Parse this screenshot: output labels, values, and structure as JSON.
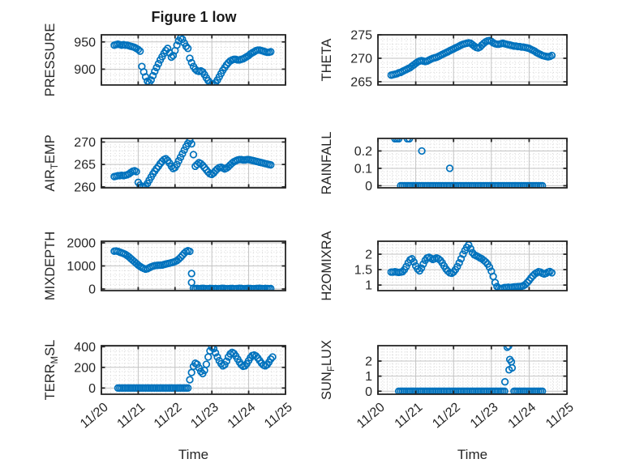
{
  "figure": {
    "title": "Figure 1 low"
  },
  "style": {
    "marker_color": "#0072BD",
    "axis_color": "#262626",
    "major_grid_color": "#c3c3c3",
    "minor_grid_color": "#d6d6d6"
  },
  "x_axis": {
    "label": "Time",
    "lim": [
      0,
      5
    ],
    "tick_values": [
      0,
      1,
      2,
      3,
      4,
      5
    ],
    "tick_labels": [
      "11/20",
      "11/21",
      "11/22",
      "11/23",
      "11/24",
      "11/25"
    ],
    "minor_step": 0.125
  },
  "chart_data": [
    {
      "type": "scatter",
      "name": "pressure",
      "ylabel_segments": [
        {
          "text": "PRESSURE",
          "sub": false
        }
      ],
      "ylim": [
        871,
        963
      ],
      "ytick_values": [
        900,
        950
      ],
      "ytick_labels": [
        "900",
        "950"
      ],
      "y_minor_step": 10,
      "series": {
        "t0": 0.35,
        "dt": 0.05,
        "y": [
          944,
          945,
          946,
          945,
          944,
          945,
          944,
          944,
          943,
          942,
          941,
          940,
          938,
          936,
          933,
          905,
          895,
          886,
          878,
          875,
          880,
          888,
          896,
          903,
          910,
          917,
          923,
          929,
          934,
          938,
          930,
          922,
          925,
          934,
          944,
          952,
          957,
          955,
          948,
          942,
          938,
          920,
          912,
          905,
          900,
          897,
          896,
          897,
          895,
          890,
          884,
          879,
          875,
          873,
          872,
          875,
          880,
          886,
          892,
          898,
          903,
          908,
          912,
          915,
          917,
          918,
          918,
          917,
          917,
          918,
          919,
          921,
          923,
          925,
          928,
          930,
          932,
          934,
          935,
          935,
          934,
          933,
          932,
          931,
          931,
          932
        ]
      }
    },
    {
      "type": "scatter",
      "name": "theta",
      "ylabel_segments": [
        {
          "text": "THETA",
          "sub": false
        }
      ],
      "ylim": [
        264.3,
        275
      ],
      "ytick_values": [
        265,
        270,
        275
      ],
      "ytick_labels": [
        "265",
        "270",
        "275"
      ],
      "y_minor_step": 1,
      "series": {
        "t0": 0.35,
        "dt": 0.05,
        "y": [
          266.4,
          266.5,
          266.6,
          266.7,
          266.9,
          267.0,
          267.2,
          267.4,
          267.6,
          267.8,
          268.0,
          268.3,
          268.6,
          268.9,
          269.2,
          269.4,
          269.5,
          269.4,
          269.3,
          269.4,
          269.6,
          269.8,
          270.0,
          270.1,
          270.2,
          270.4,
          270.6,
          270.8,
          271.0,
          271.2,
          271.4,
          271.6,
          271.8,
          272.0,
          272.2,
          272.4,
          272.6,
          272.8,
          273.0,
          273.1,
          273.2,
          273.3,
          273.2,
          272.9,
          272.6,
          272.3,
          272.2,
          272.4,
          272.8,
          273.2,
          273.5,
          273.7,
          273.8,
          273.6,
          273.3,
          273.1,
          273.0,
          273.0,
          273.1,
          273.2,
          273.1,
          273.0,
          272.9,
          272.8,
          272.7,
          272.6,
          272.6,
          272.5,
          272.5,
          272.4,
          272.4,
          272.3,
          272.2,
          272.1,
          271.9,
          271.7,
          271.5,
          271.2,
          271.0,
          270.8,
          270.6,
          270.5,
          270.4,
          270.3,
          270.4,
          270.6
        ]
      }
    },
    {
      "type": "scatter",
      "name": "air-temp",
      "ylabel_segments": [
        {
          "text": "AIR",
          "sub": false
        },
        {
          "text": "T",
          "sub": true
        },
        {
          "text": "EMP",
          "sub": false
        }
      ],
      "ylim": [
        259.8,
        270.8
      ],
      "ytick_values": [
        260,
        265,
        270
      ],
      "ytick_labels": [
        "260",
        "265",
        "270"
      ],
      "y_minor_step": 1,
      "series": {
        "t0": 0.35,
        "dt": 0.05,
        "y": [
          262.3,
          262.4,
          262.5,
          262.5,
          262.6,
          262.5,
          262.6,
          262.7,
          262.9,
          263.2,
          263.5,
          263.6,
          263.4,
          261.0,
          260.4,
          260.1,
          260.0,
          260.2,
          260.8,
          261.5,
          262.2,
          262.9,
          263.5,
          264.1,
          264.6,
          265.2,
          265.7,
          266.1,
          266.3,
          265.9,
          265.3,
          264.6,
          264.1,
          264.3,
          265.0,
          265.8,
          266.6,
          267.4,
          268.2,
          269.0,
          269.7,
          270.3,
          269.6,
          267.2,
          264.6,
          265.0,
          265.4,
          265.2,
          264.8,
          264.3,
          263.8,
          263.3,
          262.9,
          262.8,
          263.1,
          263.6,
          264.0,
          264.3,
          264.4,
          264.2,
          264.0,
          264.2,
          264.5,
          264.9,
          265.3,
          265.6,
          265.8,
          266.0,
          266.1,
          266.1,
          266.0,
          266.0,
          266.1,
          266.1,
          266.0,
          265.9,
          265.8,
          265.7,
          265.6,
          265.5,
          265.4,
          265.3,
          265.2,
          265.1,
          265.0,
          264.9
        ]
      }
    },
    {
      "type": "scatter",
      "name": "rainfall",
      "ylabel_segments": [
        {
          "text": "RAINFALL",
          "sub": false
        }
      ],
      "ylim": [
        -0.012,
        0.272
      ],
      "ytick_values": [
        0,
        0.1,
        0.2
      ],
      "ytick_labels": [
        "0",
        "0.1",
        "0.2"
      ],
      "y_minor_step": 0.02,
      "series": {
        "t0": 0.6,
        "dt": 0.05,
        "y": [
          0,
          0,
          0,
          0,
          0,
          0,
          0,
          0,
          0,
          0,
          0,
          0,
          0,
          0,
          0,
          0,
          0,
          0,
          0,
          0,
          0,
          0,
          0,
          0,
          0,
          0,
          0,
          0,
          0,
          0,
          0,
          0,
          0,
          0,
          0,
          0,
          0,
          0,
          0,
          0,
          0,
          0,
          0,
          0,
          0,
          0,
          0,
          0,
          0,
          0,
          0,
          0,
          0,
          0,
          0,
          0,
          0,
          0,
          0,
          0,
          0,
          0,
          0,
          0,
          0,
          0,
          0,
          0,
          0,
          0,
          0,
          0,
          0,
          0,
          0,
          0
        ]
      },
      "extra_points": [
        [
          0.45,
          0.27
        ],
        [
          0.5,
          0.27
        ],
        [
          0.55,
          0.27
        ],
        [
          0.78,
          0.27
        ],
        [
          0.83,
          0.27
        ],
        [
          1.16,
          0.2
        ],
        [
          1.9,
          0.1
        ]
      ]
    },
    {
      "type": "scatter",
      "name": "mixdepth",
      "ylabel_segments": [
        {
          "text": "MIXDEPTH",
          "sub": false
        }
      ],
      "ylim": [
        -70,
        2070
      ],
      "ytick_values": [
        0,
        1000,
        2000
      ],
      "ytick_labels": [
        "0",
        "1000",
        "2000"
      ],
      "y_minor_step": 200,
      "series": {
        "t0": 0.35,
        "dt": 0.05,
        "y": [
          1640,
          1650,
          1630,
          1600,
          1570,
          1540,
          1500,
          1450,
          1390,
          1320,
          1250,
          1180,
          1110,
          1040,
          980,
          930,
          890,
          860,
          880,
          920,
          960,
          990,
          1010,
          1020,
          1030,
          1030,
          1040,
          1060,
          1080,
          1100,
          1120,
          1140,
          1160,
          1190,
          1230,
          1290,
          1370,
          1460,
          1550,
          1620,
          1660,
          1630,
          null,
          30,
          15,
          25,
          10,
          20,
          30,
          20,
          10,
          15,
          25,
          20,
          10,
          20,
          15,
          10,
          25,
          30,
          20,
          10,
          15,
          20,
          25,
          15,
          10,
          20,
          30,
          25,
          15,
          10,
          20,
          25,
          20,
          15,
          10,
          20,
          25,
          30,
          20,
          15,
          25,
          20,
          15,
          20
        ]
      },
      "extra_points": [
        [
          2.45,
          670
        ],
        [
          2.45,
          280
        ]
      ]
    },
    {
      "type": "scatter",
      "name": "h2omixra",
      "ylabel_segments": [
        {
          "text": "H2OMIXRA",
          "sub": false
        }
      ],
      "ylim": [
        0.82,
        2.42
      ],
      "ytick_values": [
        1,
        1.5,
        2
      ],
      "ytick_labels": [
        "1",
        "1.5",
        "2"
      ],
      "y_minor_step": 0.1,
      "series": {
        "t0": 0.35,
        "dt": 0.05,
        "y": [
          1.42,
          1.42,
          1.43,
          1.42,
          1.41,
          1.42,
          1.43,
          1.5,
          1.6,
          1.72,
          1.82,
          1.85,
          1.75,
          1.62,
          1.52,
          1.46,
          1.55,
          1.68,
          1.8,
          1.88,
          1.9,
          1.87,
          1.83,
          1.85,
          1.88,
          1.85,
          1.8,
          1.72,
          1.62,
          1.52,
          1.45,
          1.4,
          1.38,
          1.42,
          1.5,
          1.6,
          1.72,
          1.85,
          2.0,
          2.12,
          2.22,
          2.3,
          2.18,
          2.05,
          1.98,
          1.95,
          1.92,
          1.88,
          1.85,
          1.8,
          1.75,
          1.68,
          1.58,
          1.45,
          1.28,
          1.08,
          0.95,
          0.9,
          0.88,
          0.9,
          0.92,
          0.92,
          0.93,
          0.92,
          0.93,
          0.94,
          0.94,
          0.95,
          0.95,
          0.96,
          0.98,
          1.02,
          1.08,
          1.15,
          1.23,
          1.3,
          1.36,
          1.4,
          1.43,
          1.42,
          1.38,
          1.36,
          1.38,
          1.42,
          1.44,
          1.4
        ]
      }
    },
    {
      "type": "scatter",
      "name": "terr-msl",
      "ylabel_segments": [
        {
          "text": "TERR",
          "sub": false
        },
        {
          "text": "M",
          "sub": true
        },
        {
          "text": "SL",
          "sub": false
        }
      ],
      "ylim": [
        -60,
        410
      ],
      "ytick_values": [
        0,
        200,
        400
      ],
      "ytick_labels": [
        "0",
        "200",
        "400"
      ],
      "y_minor_step": 40,
      "series": {
        "t0": 0.45,
        "dt": 0.05,
        "y": [
          0,
          0,
          0,
          0,
          0,
          0,
          0,
          0,
          0,
          0,
          0,
          0,
          0,
          0,
          0,
          0,
          0,
          0,
          0,
          0,
          0,
          0,
          0,
          0,
          0,
          0,
          0,
          0,
          0,
          0,
          0,
          0,
          0,
          0,
          0,
          0,
          0,
          0,
          0,
          80,
          150,
          210,
          240,
          230,
          195,
          160,
          140,
          170,
          230,
          300,
          360,
          395,
          380,
          340,
          300,
          265,
          235,
          215,
          225,
          260,
          300,
          330,
          345,
          335,
          310,
          280,
          250,
          225,
          210,
          215,
          235,
          265,
          295,
          315,
          320,
          310,
          290,
          265,
          240,
          222,
          215,
          225,
          250,
          280,
          300
        ]
      }
    },
    {
      "type": "scatter",
      "name": "sun-flux",
      "ylabel_segments": [
        {
          "text": "SUN",
          "sub": false
        },
        {
          "text": "F",
          "sub": true
        },
        {
          "text": "LUX",
          "sub": false
        }
      ],
      "ylim": [
        -0.2,
        3.02
      ],
      "ytick_values": [
        0,
        1,
        2
      ],
      "ytick_labels": [
        "0",
        "1",
        "2"
      ],
      "y_minor_step": 0.2,
      "series": {
        "t0": 0.55,
        "dt": 0.05,
        "y": [
          0,
          0,
          0,
          0,
          0,
          0,
          0,
          0,
          0,
          0,
          0,
          0,
          0,
          0,
          0,
          0,
          0,
          0,
          0,
          0,
          0,
          0,
          0,
          0,
          0,
          0,
          0,
          0,
          0,
          0,
          0,
          0,
          0,
          0,
          0,
          0,
          0,
          0,
          0,
          0,
          0,
          0,
          0,
          0,
          0,
          0,
          0,
          0,
          0,
          0,
          0,
          0,
          0,
          0,
          0,
          0,
          0,
          null,
          null,
          null,
          null,
          0,
          0,
          0,
          0,
          0,
          0,
          0,
          0,
          0,
          0,
          0,
          0,
          0,
          0,
          0,
          0
        ]
      },
      "extra_points": [
        [
          3.36,
          0.62
        ],
        [
          3.42,
          2.92
        ],
        [
          3.46,
          3.0
        ],
        [
          3.49,
          2.1
        ],
        [
          3.53,
          1.95
        ],
        [
          3.47,
          1.42
        ],
        [
          3.55,
          1.55
        ]
      ]
    }
  ]
}
